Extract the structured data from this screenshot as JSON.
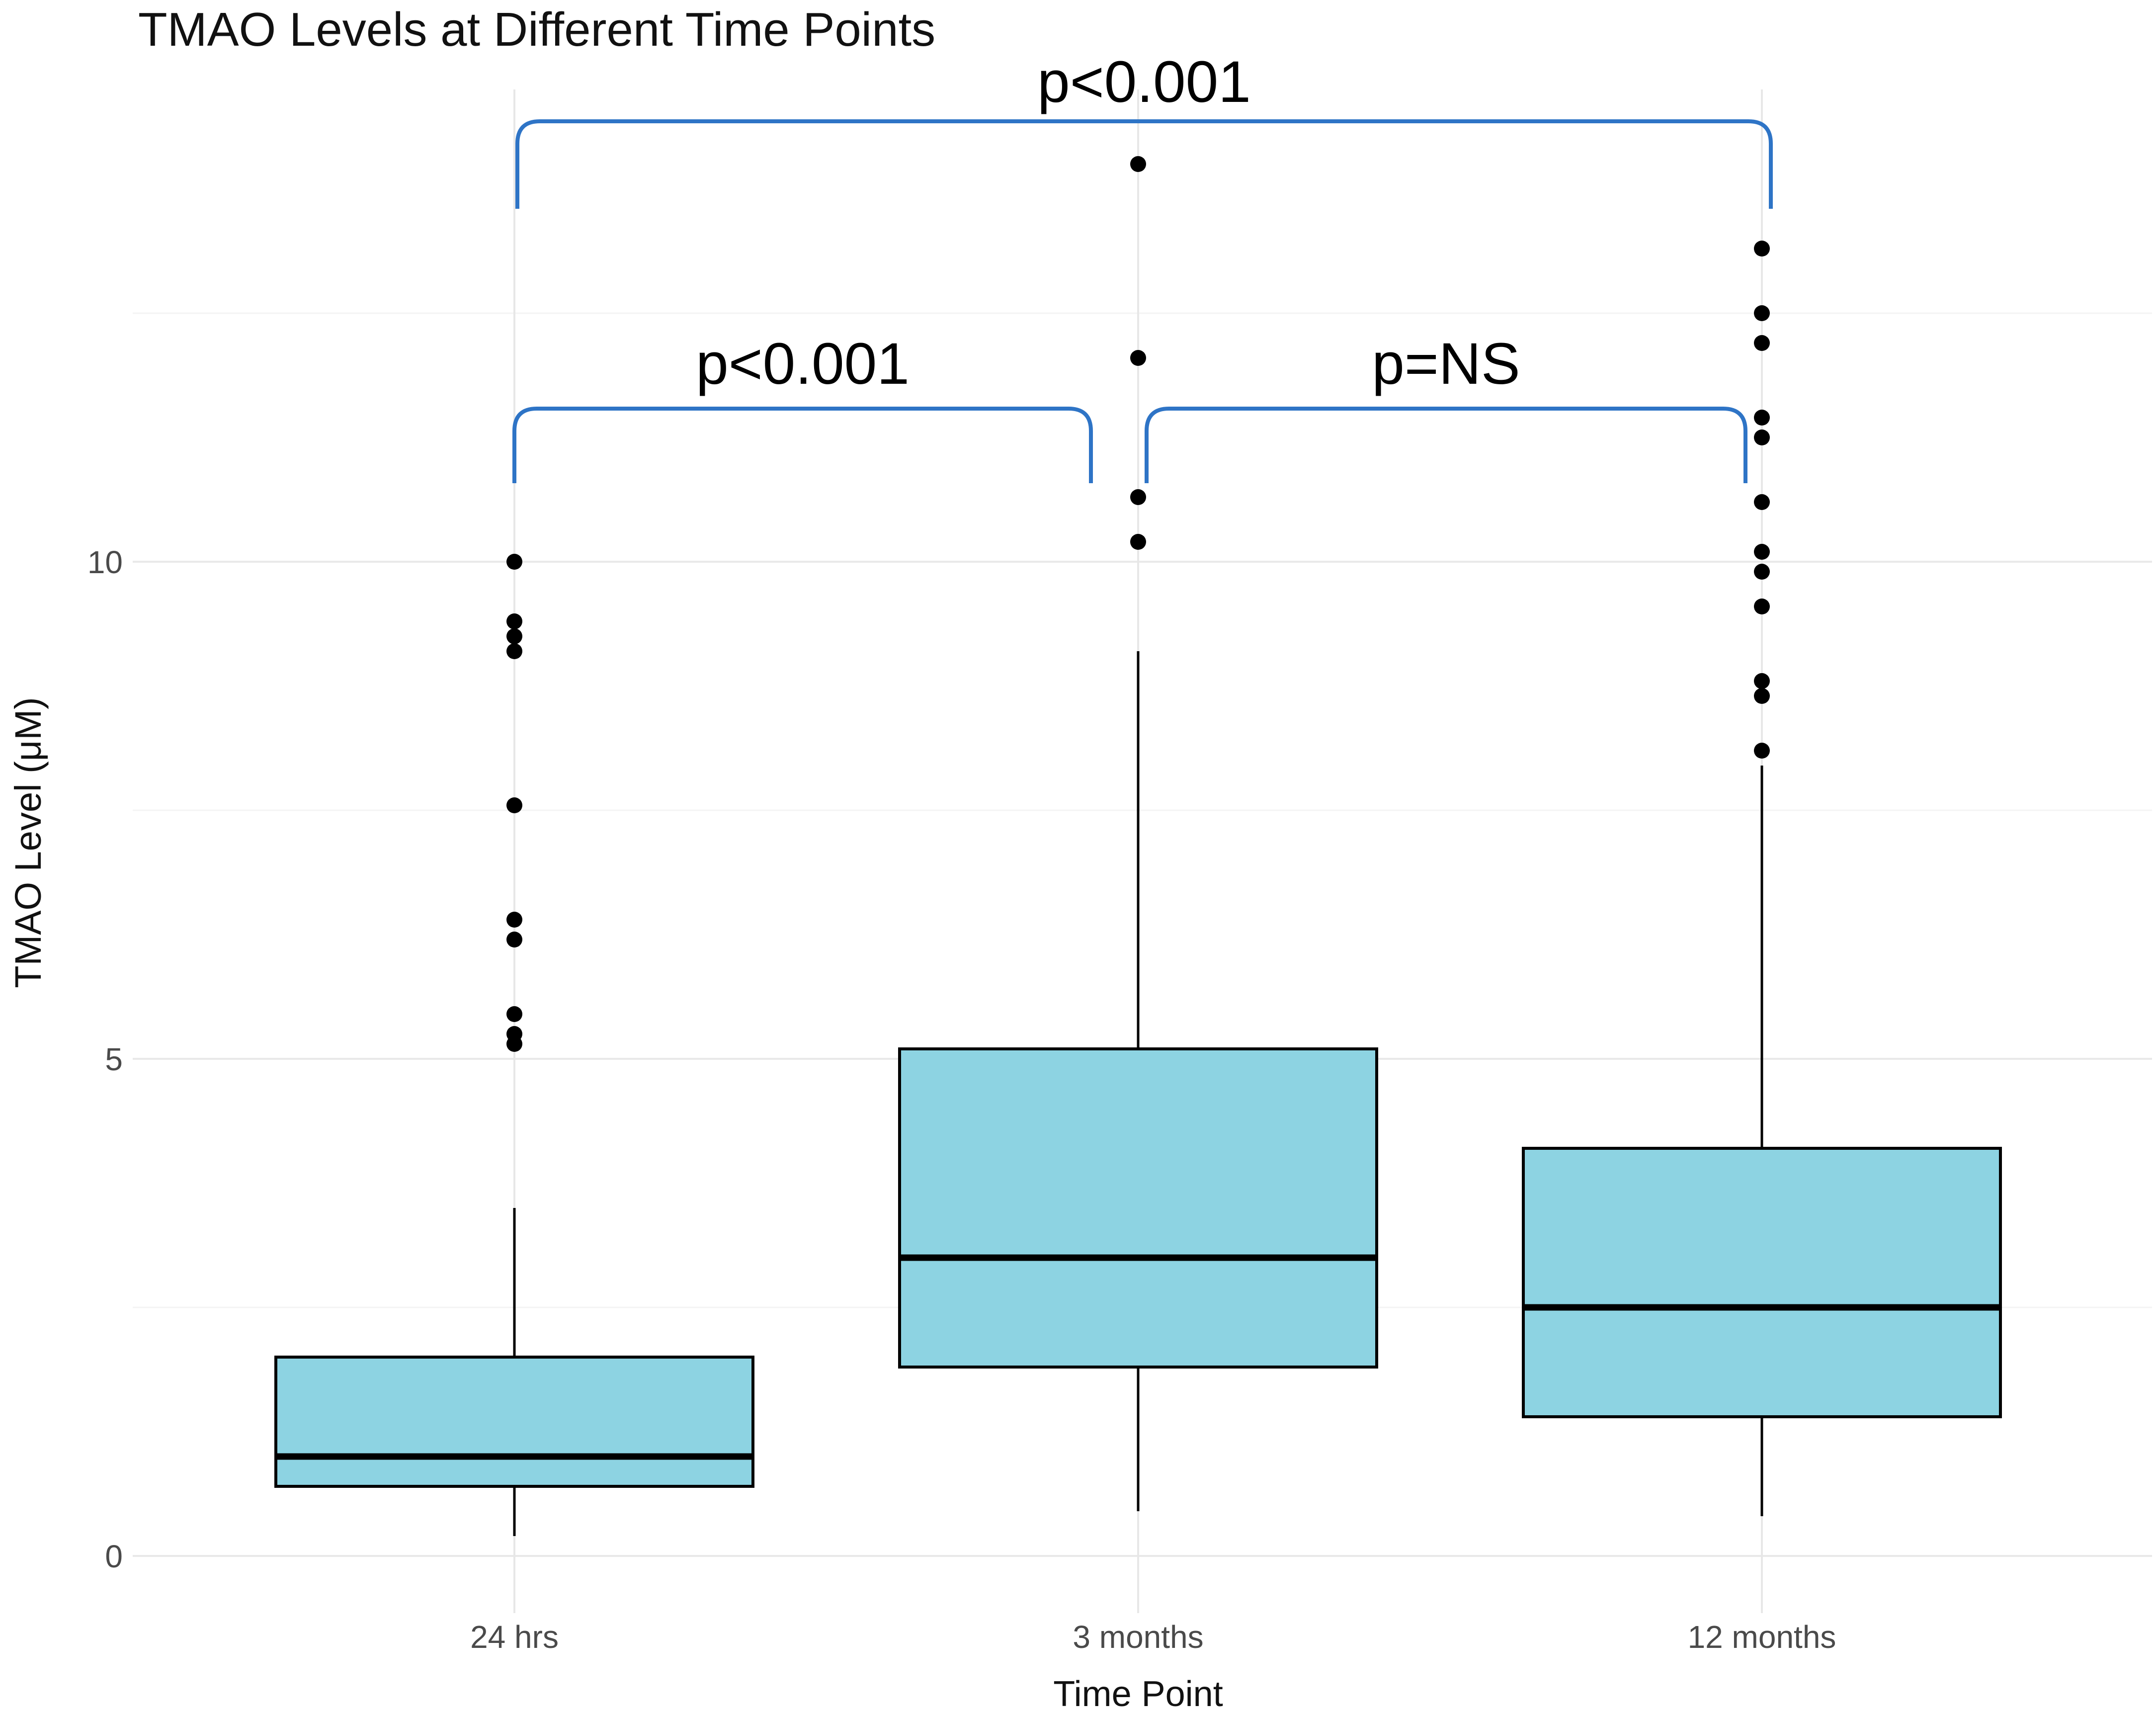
{
  "chart_data": {
    "type": "boxplot",
    "title": "TMAO Levels at Different Time Points",
    "xlabel": "Time Point",
    "ylabel": "TMAO Level (μM)",
    "categories": [
      "24 hrs",
      "3 months",
      "12 months"
    ],
    "ylim": [
      -1.6,
      15.6
    ],
    "yticks": [
      {
        "value": 0,
        "label": "0"
      },
      {
        "value": 5,
        "label": "5"
      },
      {
        "value": 10,
        "label": "10"
      }
    ],
    "minor_gridline_values": [
      2.5,
      7.5,
      12.5
    ],
    "grid": "horizontal major+minor gridlines, faint vertical line at each category",
    "legend": "none",
    "series": [
      {
        "category": "24 hrs",
        "whisker_low": 0.2,
        "q1": 0.7,
        "median": 1.0,
        "q3": 2.0,
        "whisker_high": 3.5,
        "outliers": [
          5.15,
          5.25,
          5.45,
          6.2,
          6.4,
          7.55,
          9.1,
          9.25,
          9.4,
          10.0
        ]
      },
      {
        "category": "3 months",
        "whisker_low": 0.45,
        "q1": 1.9,
        "median": 3.0,
        "q3": 5.1,
        "whisker_high": 9.1,
        "outliers": [
          10.2,
          10.65,
          12.05,
          14.0
        ]
      },
      {
        "category": "12 months",
        "whisker_low": 0.4,
        "q1": 1.4,
        "median": 2.5,
        "q3": 4.1,
        "whisker_high": 7.95,
        "outliers": [
          8.1,
          8.65,
          8.8,
          9.55,
          9.9,
          10.1,
          10.6,
          11.25,
          11.45,
          12.2,
          12.5,
          13.15
        ]
      }
    ],
    "annotations": [
      {
        "label": "p<0.001",
        "from": "24 hrs",
        "to": "12 months",
        "level": "top"
      },
      {
        "label": "p<0.001",
        "from": "24 hrs",
        "to": "3 months",
        "level": "mid"
      },
      {
        "label": "p=NS",
        "from": "3 months",
        "to": "12 months",
        "level": "mid"
      }
    ],
    "colors": {
      "box_fill": "#8dd3e2",
      "box_edge": "#000000",
      "median_line": "#000000",
      "whisker": "#000000",
      "outlier_dot": "#000000",
      "bracket": "#2e74c6",
      "grid_major": "#e9e9e9",
      "grid_minor": "#f4f4f4",
      "grid_vertical": "#e7e7e7",
      "tick_label": "#4a4a4a",
      "text": "#111111"
    }
  }
}
